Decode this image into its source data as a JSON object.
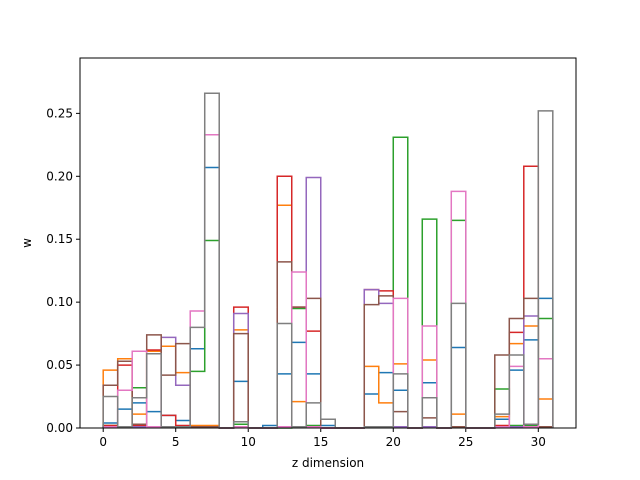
{
  "chart_data": {
    "type": "step-histogram",
    "xlabel": "z dimension",
    "ylabel": "w",
    "xlim": [
      -1.6,
      32.6
    ],
    "ylim": [
      0,
      0.294
    ],
    "x_ticks": [
      0,
      5,
      10,
      15,
      20,
      25,
      30
    ],
    "y_ticks": [
      0.0,
      0.05,
      0.1,
      0.15,
      0.2,
      0.25
    ],
    "y_tick_labels": [
      "0.00",
      "0.05",
      "0.10",
      "0.15",
      "0.20",
      "0.25"
    ],
    "bin_edges": [
      0,
      1,
      2,
      3,
      4,
      5,
      6,
      7,
      8,
      9,
      10,
      11,
      12,
      13,
      14,
      15,
      16,
      17,
      18,
      19,
      20,
      21,
      22,
      23,
      24,
      25,
      26,
      27,
      28,
      29,
      30,
      31
    ],
    "series": [
      {
        "color": "#1f77b4",
        "values": [
          0.004,
          0.015,
          0.02,
          0.013,
          0.01,
          0.006,
          0.063,
          0.207,
          0,
          0.037,
          0,
          0.002,
          0.043,
          0.068,
          0.043,
          0.002,
          0,
          0,
          0.027,
          0.044,
          0.03,
          0,
          0.036,
          0,
          0.064,
          0,
          0,
          0.007,
          0.046,
          0.07,
          0.103
        ]
      },
      {
        "color": "#ff7f0e",
        "values": [
          0.046,
          0.055,
          0.011,
          0.061,
          0.065,
          0.044,
          0.002,
          0.002,
          0,
          0.078,
          0,
          0,
          0.177,
          0.021,
          0.001,
          0,
          0,
          0,
          0.049,
          0.02,
          0.051,
          0,
          0.054,
          0,
          0.011,
          0,
          0,
          0.009,
          0.067,
          0.081,
          0.023
        ]
      },
      {
        "color": "#2ca02c",
        "values": [
          0.002,
          0.001,
          0.032,
          0.001,
          0.001,
          0.001,
          0.045,
          0.149,
          0,
          0.003,
          0,
          0,
          0,
          0.095,
          0.002,
          0,
          0,
          0,
          0.001,
          0.001,
          0.231,
          0,
          0.166,
          0,
          0.165,
          0,
          0,
          0.031,
          0.002,
          0.002,
          0.087
        ]
      },
      {
        "color": "#d62728",
        "values": [
          0.002,
          0.05,
          0.002,
          0.062,
          0.01,
          0.002,
          0.001,
          0.001,
          0,
          0.096,
          0,
          0,
          0.2,
          0.096,
          0.077,
          0,
          0,
          0,
          0.11,
          0.109,
          0.001,
          0,
          0.001,
          0,
          0.001,
          0,
          0,
          0.002,
          0.076,
          0.208,
          0.001
        ]
      },
      {
        "color": "#9467bd",
        "values": [
          0.001,
          0.001,
          0.001,
          0.001,
          0.072,
          0.034,
          0.001,
          0.001,
          0,
          0.091,
          0,
          0,
          0.001,
          0.001,
          0.199,
          0,
          0,
          0,
          0.11,
          0.099,
          0.001,
          0,
          0.001,
          0,
          0.001,
          0,
          0,
          0.001,
          0.001,
          0.089,
          0.001
        ]
      },
      {
        "color": "#8c564b",
        "values": [
          0.034,
          0.053,
          0.003,
          0.074,
          0.042,
          0.067,
          0.001,
          0.001,
          0,
          0.075,
          0,
          0,
          0.132,
          0.096,
          0.103,
          0,
          0,
          0,
          0.098,
          0.105,
          0.013,
          0,
          0.008,
          0,
          0.001,
          0,
          0,
          0.058,
          0.087,
          0.103,
          0.001
        ]
      },
      {
        "color": "#e377c2",
        "values": [
          0.001,
          0.03,
          0.061,
          0.001,
          0.001,
          0.001,
          0.093,
          0.233,
          0,
          0.001,
          0,
          0,
          0.001,
          0.124,
          0.001,
          0,
          0,
          0,
          0.001,
          0.001,
          0.103,
          0,
          0.081,
          0,
          0.188,
          0,
          0,
          0.001,
          0.049,
          0.001,
          0.055
        ]
      },
      {
        "color": "#7f7f7f",
        "values": [
          0.025,
          0.001,
          0.024,
          0.059,
          0.001,
          0.001,
          0.08,
          0.266,
          0,
          0.005,
          0,
          0,
          0.083,
          0.001,
          0.02,
          0.007,
          0,
          0,
          0.001,
          0.001,
          0.043,
          0,
          0.024,
          0,
          0.099,
          0,
          0,
          0.011,
          0.058,
          0.003,
          0.252
        ]
      }
    ]
  }
}
